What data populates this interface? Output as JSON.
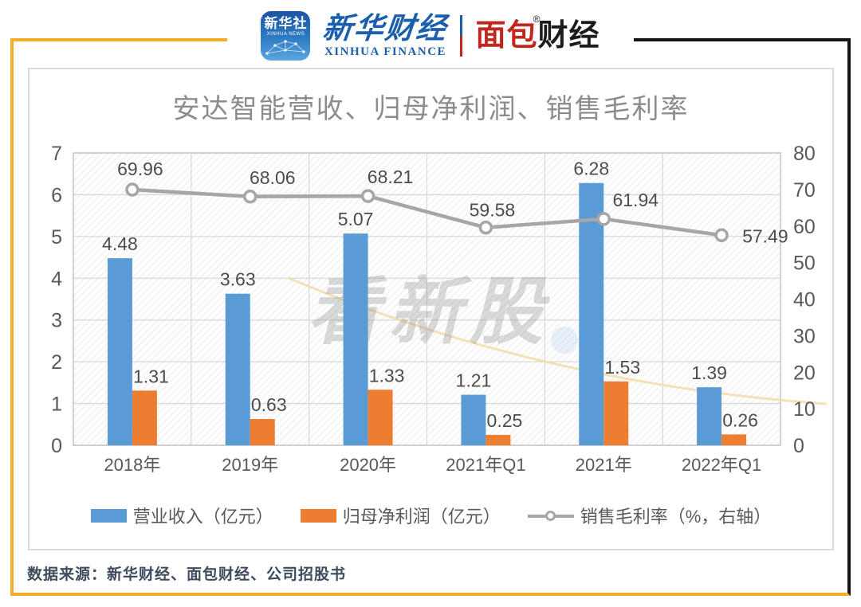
{
  "colors": {
    "gold": "#f0af26",
    "frame_black": "#141414",
    "bar_blue": "#5b9bd5",
    "bar_orange": "#ed7d31",
    "line_gray": "#a6a6a6",
    "grid": "#d9d9d9",
    "axis_text": "#595959",
    "title_text": "#8c8c8c",
    "xinhua_blue": "#1b5eab",
    "bread_red": "#c0281e"
  },
  "header": {
    "xinhua_app": {
      "line1": "新华社",
      "line2": "XINHUA NEWS"
    },
    "xinhua_finance": {
      "cn": "新华财经",
      "en": "XINHUA FINANCE"
    },
    "bread_finance": {
      "part1": "面包",
      "part2": "财经",
      "reg": "®"
    }
  },
  "watermark": {
    "text": "看新股"
  },
  "source": "数据来源：新华财经、面包财经、公司招股书",
  "chart_data": {
    "type": "bar",
    "title": "安达智能营收、归母净利润、销售毛利率",
    "categories": [
      "2018年",
      "2019年",
      "2020年",
      "2021年Q1",
      "2021年",
      "2022年Q1"
    ],
    "series": [
      {
        "name": "营业收入（亿元）",
        "type": "bar",
        "axis": "left",
        "color": "#5b9bd5",
        "values": [
          4.48,
          3.63,
          5.07,
          1.21,
          6.28,
          1.39
        ]
      },
      {
        "name": "归母净利润（亿元）",
        "type": "bar",
        "axis": "left",
        "color": "#ed7d31",
        "values": [
          1.31,
          0.63,
          1.33,
          0.25,
          1.53,
          0.26
        ]
      },
      {
        "name": "销售毛利率（%，右轴）",
        "type": "line",
        "axis": "right",
        "color": "#a6a6a6",
        "values": [
          69.96,
          68.06,
          68.21,
          59.58,
          61.94,
          57.49
        ]
      }
    ],
    "left_axis": {
      "min": 0,
      "max": 7,
      "ticks": [
        0,
        1,
        2,
        3,
        4,
        5,
        6,
        7
      ]
    },
    "right_axis": {
      "min": 0,
      "max": 80,
      "ticks": [
        0,
        10,
        20,
        30,
        40,
        50,
        60,
        70,
        80
      ]
    },
    "grid": "horizontal and vertical, hatched plot background",
    "legend_position": "bottom"
  }
}
